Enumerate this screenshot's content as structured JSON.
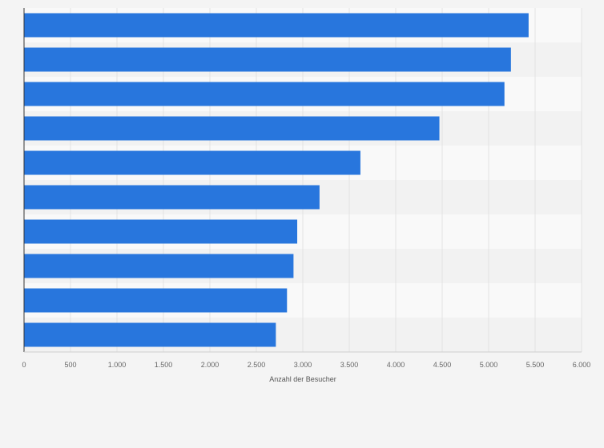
{
  "chart_data": {
    "type": "bar",
    "orientation": "horizontal",
    "title": "",
    "xlabel": "Anzahl der Besucher",
    "ylabel": "",
    "categories": [
      "",
      "",
      "",
      "",
      "",
      "",
      "",
      "",
      "",
      ""
    ],
    "values": [
      5430,
      5240,
      5170,
      4470,
      3620,
      3180,
      2940,
      2900,
      2830,
      2710
    ],
    "xlim": [
      0,
      6000
    ],
    "x_ticks": [
      0,
      500,
      1000,
      1500,
      2000,
      2500,
      3000,
      3500,
      4000,
      4500,
      5000,
      5500,
      6000
    ],
    "x_tick_labels": [
      "0",
      "500",
      "1.000",
      "1.500",
      "2.000",
      "2.500",
      "3.000",
      "3.500",
      "4.000",
      "4.500",
      "5.000",
      "5.500",
      "6.000"
    ],
    "grid": true,
    "legend": "none",
    "colors": {
      "bar": "#2876dd",
      "background": "#f4f4f4",
      "band_light": "#f9f9f9",
      "band_dark": "#f2f2f2",
      "grid": "#e2e2e2",
      "axis": "#333333"
    }
  }
}
